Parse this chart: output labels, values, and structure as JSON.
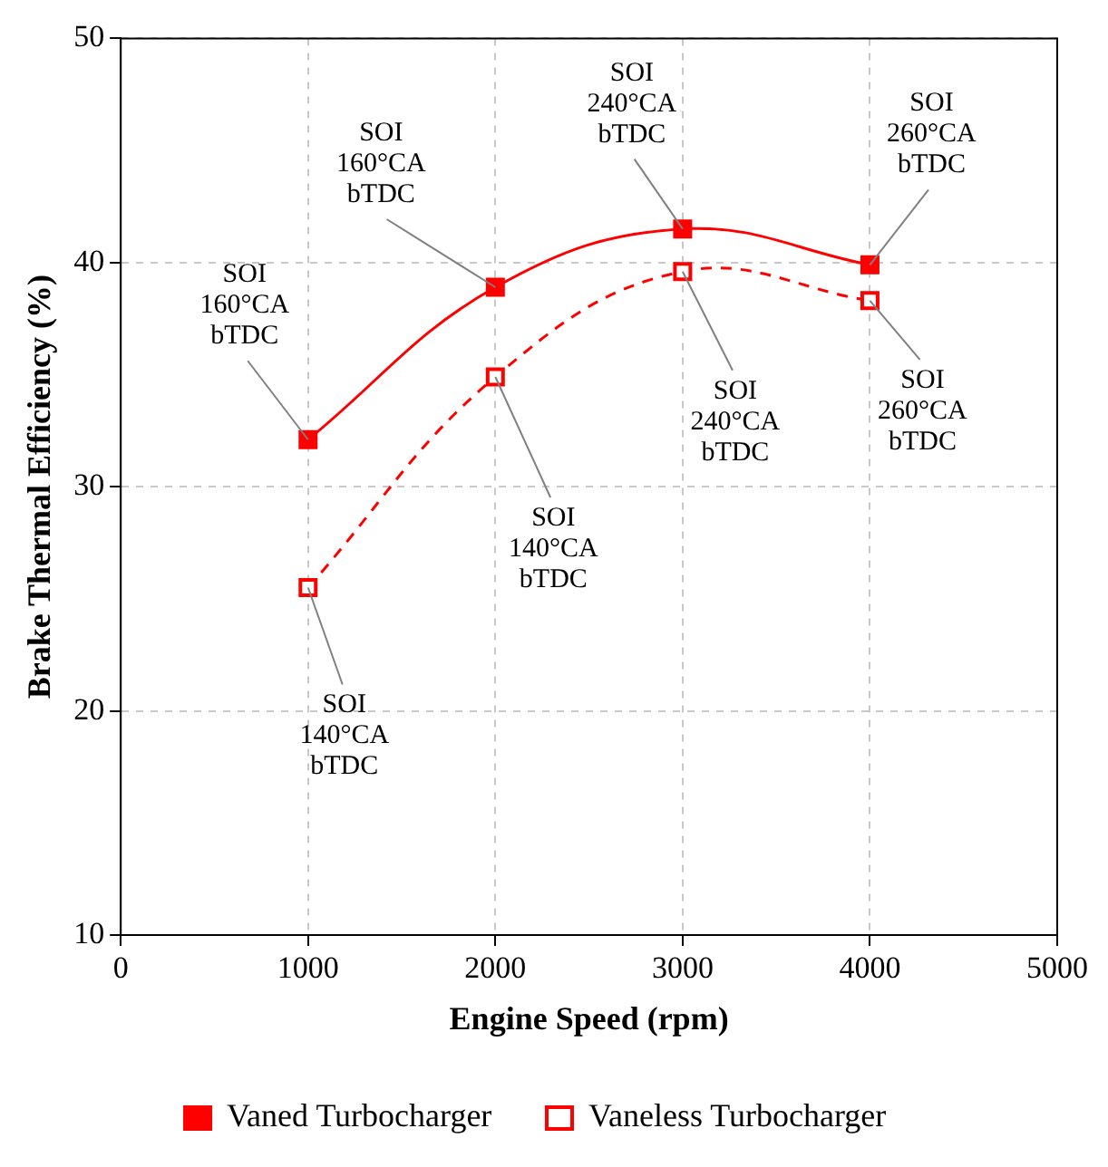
{
  "chart_data": {
    "type": "line",
    "xlabel": "Engine Speed (rpm)",
    "ylabel": "Brake Thermal Efficiency (%)",
    "x": [
      1000,
      2000,
      3000,
      4000
    ],
    "series": [
      {
        "name": "Vaned Turbocharger",
        "color": "#ff0000",
        "values": [
          32.1,
          38.9,
          41.5,
          39.9
        ],
        "line_style": "solid"
      },
      {
        "name": "Vaneless Turbocharger",
        "color": "#ff0000",
        "values": [
          25.5,
          34.9,
          39.6,
          38.3
        ],
        "line_style": "dashed"
      }
    ],
    "xlim": [
      0,
      5000
    ],
    "xticks": [
      0,
      1000,
      2000,
      3000,
      4000,
      5000
    ],
    "ylim": [
      10,
      50
    ],
    "yticks": [
      10,
      20,
      30,
      40,
      50
    ],
    "grid": true,
    "legend": "bottom",
    "marker": "square",
    "annotations": [
      {
        "text": "SOI 160°CA bTDC",
        "x": 1000,
        "y": 32.1
      },
      {
        "text": "SOI 160°CA bTDC",
        "x": 2000,
        "y": 38.9
      },
      {
        "text": "SOI 240°CA bTDC",
        "x": 3000,
        "y": 41.5
      },
      {
        "text": "SOI 260°CA bTDC",
        "x": 4000,
        "y": 39.9
      },
      {
        "text": "SOI 140°CA bTDC",
        "x": 1000,
        "y": 25.5
      },
      {
        "text": "SOI 140°CA bTDC",
        "x": 2000,
        "y": 34.9
      },
      {
        "text": "SOI 240°CA bTDC",
        "x": 3000,
        "y": 39.6
      },
      {
        "text": "SOI 260°CA bTDC",
        "x": 4000,
        "y": 38.3
      }
    ]
  }
}
